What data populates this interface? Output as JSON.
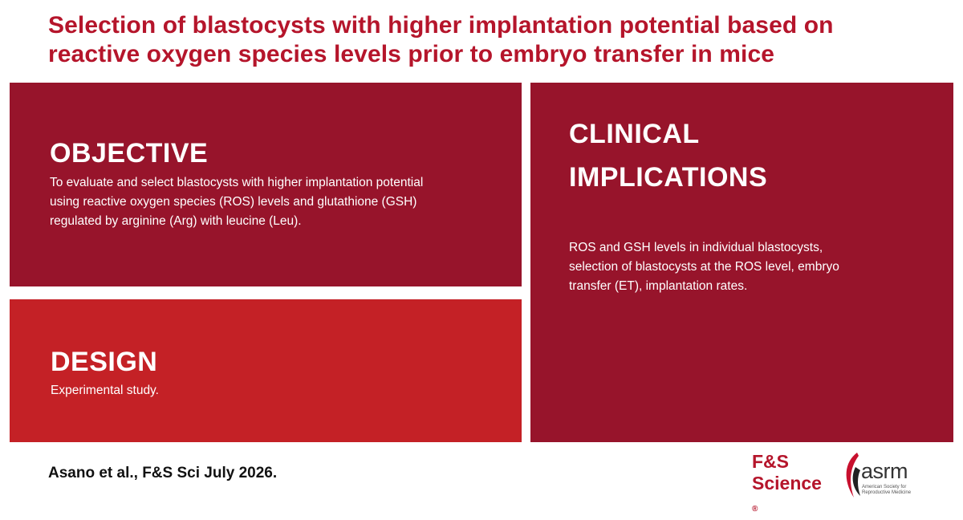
{
  "title": {
    "line1": "Selection of blastocysts with higher implantation potential based on",
    "line2": "reactive oxygen species levels prior to embryo transfer in mice"
  },
  "objective": {
    "heading": "OBJECTIVE",
    "lines": [
      "To evaluate and select blastocysts with higher implantation potential",
      "using reactive oxygen species (ROS) levels and glutathione (GSH)",
      "regulated by arginine (Arg) with leucine (Leu)."
    ]
  },
  "design": {
    "heading": "DESIGN",
    "text": "Experimental study."
  },
  "clinical_implications": {
    "heading_line1": "CLINICAL",
    "heading_line2": "IMPLICATIONS",
    "lines": [
      "ROS and GSH levels in individual blastocysts,",
      "selection of blastocysts at the ROS level, embryo",
      "transfer (ET), implantation rates."
    ]
  },
  "citation": "Asano et al., F&S Sci July 2026.",
  "logos": {
    "fs_line1": "F&S",
    "fs_line2": "Science",
    "fs_mark": "®",
    "asrm_word": "asrm",
    "asrm_sub_line1": "American Society for",
    "asrm_sub_line2": "Reproductive Medicine"
  },
  "colors": {
    "title": "#B5152B",
    "dark_red_panel": "#97142B",
    "bright_red_panel": "#C42126",
    "panel_text": "#FFFFFF",
    "citation_text": "#111111"
  }
}
